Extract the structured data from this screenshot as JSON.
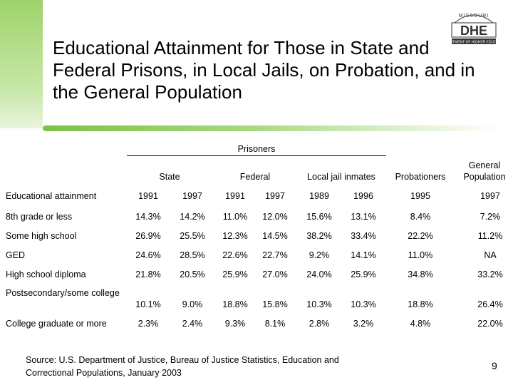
{
  "title": "Educational Attainment for Those in State and Federal Prisons, in Local Jails, on Probation, and in the General Population",
  "logo": {
    "top_text": "MISSOURI",
    "name": "DHE",
    "sub_text": "DEPARTMENT OF HIGHER EDUCATION"
  },
  "table": {
    "prisoners_label": "Prisoners",
    "group_headers": [
      "State",
      "Federal",
      "Local jail inmates",
      "Probationers",
      "General Population"
    ],
    "row_header": "Educational attainment",
    "years": [
      "1991",
      "1997",
      "1991",
      "1997",
      "1989",
      "1996",
      "1995",
      "1997"
    ],
    "rows": [
      {
        "label": "8th grade or less",
        "values": [
          "14.3%",
          "14.2%",
          "11.0%",
          "12.0%",
          "15.6%",
          "13.1%",
          "8.4%",
          "7.2%"
        ]
      },
      {
        "label": "Some high school",
        "values": [
          "26.9%",
          "25.5%",
          "12.3%",
          "14.5%",
          "38.2%",
          "33.4%",
          "22.2%",
          "11.2%"
        ]
      },
      {
        "label": "GED",
        "values": [
          "24.6%",
          "28.5%",
          "22.6%",
          "22.7%",
          "9.2%",
          "14.1%",
          "11.0%",
          "NA"
        ]
      },
      {
        "label": "High school diploma",
        "values": [
          "21.8%",
          "20.5%",
          "25.9%",
          "27.0%",
          "24.0%",
          "25.9%",
          "34.8%",
          "33.2%"
        ]
      },
      {
        "label": "Postsecondary/some college",
        "values": [
          "10.1%",
          "9.0%",
          "18.8%",
          "15.8%",
          "10.3%",
          "10.3%",
          "18.8%",
          "26.4%"
        ]
      },
      {
        "label": "College graduate or more",
        "values": [
          "2.3%",
          "2.4%",
          "9.3%",
          "8.1%",
          "2.8%",
          "3.2%",
          "4.8%",
          "22.0%"
        ]
      }
    ]
  },
  "source": "Source: U.S. Department of Justice, Bureau of Justice Statistics, Education and Correctional Populations, January 2003",
  "page_number": "9"
}
